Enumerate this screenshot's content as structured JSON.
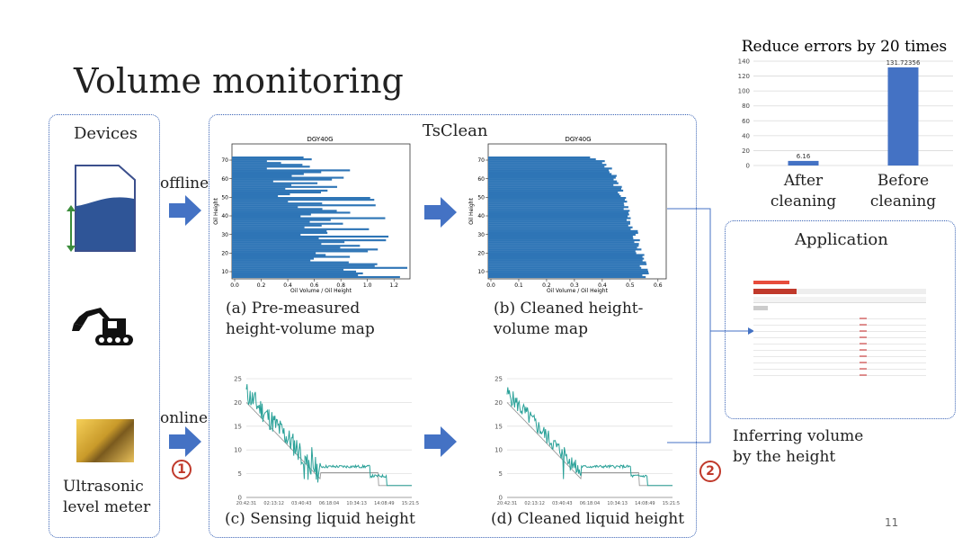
{
  "slide": {
    "title": "Volume monitoring",
    "page_number": "11"
  },
  "devices": {
    "heading": "Devices",
    "meter_label_line1": "Ultrasonic",
    "meter_label_line2": "level meter"
  },
  "flow": {
    "offline_label": "offline",
    "online_label": "online",
    "step1": "1",
    "step2": "2"
  },
  "tsclean": {
    "heading": "TsClean",
    "panel_a": {
      "line1": "(a) Pre-measured",
      "line2": "height-volume map"
    },
    "panel_b": {
      "line1": "(b) Cleaned height-",
      "line2": "volume map"
    },
    "panel_c": "(c) Sensing liquid height",
    "panel_d": "(d) Cleaned liquid height"
  },
  "application": {
    "heading": "Application",
    "caption_line1": "Inferring volume",
    "caption_line2": "by the height"
  },
  "colors": {
    "accent_border": "#3a63b5",
    "bar_blue": "#2e75b6",
    "arrow_blue": "#4472c4",
    "teal": "#2aa198",
    "step_red": "#c0392b"
  },
  "icons": [
    "tank-icon",
    "excavator-icon",
    "ultrasonic-meter-photo",
    "table-screenshot"
  ],
  "chart_data": [
    {
      "type": "bar",
      "title": "Reduce errors by 20 times",
      "categories": [
        "After cleaning",
        "Before cleaning"
      ],
      "values": [
        6.16,
        131.72356
      ],
      "data_labels": [
        "6.16",
        "131.72356"
      ],
      "ylim": [
        0,
        140
      ],
      "yticks": [
        0,
        20,
        40,
        60,
        80,
        100,
        120,
        140
      ],
      "grid": true
    },
    {
      "type": "bar",
      "title": "DGY40G",
      "orientation": "horizontal",
      "xlabel": "Oil Volume / Oil Height",
      "ylabel": "Oil Height",
      "xticks": [
        "0.0",
        "0.2",
        "0.4",
        "0.6",
        "0.8",
        "1.0",
        "1.2"
      ],
      "yticks": [
        "10",
        "20",
        "30",
        "40",
        "50",
        "60",
        "70"
      ]
    },
    {
      "type": "bar",
      "title": "DGY40G",
      "orientation": "horizontal",
      "xlabel": "Oil Volume / Oil Height",
      "ylabel": "Oil Height",
      "xticks": [
        "0.0",
        "0.1",
        "0.2",
        "0.3",
        "0.4",
        "0.5",
        "0.6"
      ],
      "yticks": [
        "10",
        "20",
        "30",
        "40",
        "50",
        "60",
        "70"
      ]
    },
    {
      "type": "line",
      "yticks": [
        "0",
        "5",
        "10",
        "15",
        "20",
        "25"
      ],
      "xticks": [
        "20:42:31",
        "02:13:12",
        "03:40:43",
        "06:18:04",
        "10:34:13",
        "14:08:49",
        "15:21:56"
      ]
    },
    {
      "type": "line",
      "yticks": [
        "0",
        "5",
        "10",
        "15",
        "20",
        "25"
      ],
      "xticks": [
        "20:42:31",
        "02:13:12",
        "03:40:43",
        "06:18:04",
        "10:34:13",
        "14:08:49",
        "15:21:56"
      ]
    }
  ]
}
